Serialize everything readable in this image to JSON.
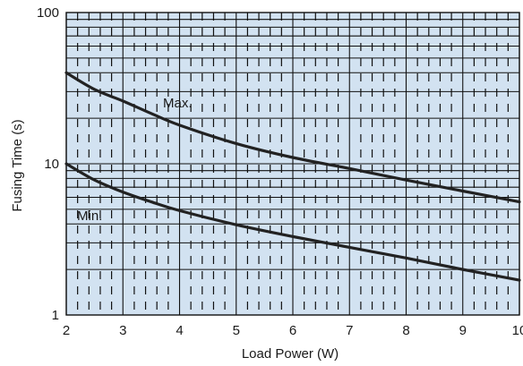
{
  "chart_data": {
    "type": "line",
    "xlabel": "Load Power (W)",
    "ylabel": "Fusing Time (s)",
    "xlim": [
      2,
      10
    ],
    "ylim": [
      1,
      100
    ],
    "yscale": "log",
    "x_ticks": [
      "2",
      "3",
      "4",
      "5",
      "6",
      "7",
      "8",
      "9",
      "10"
    ],
    "y_ticks": [
      "1",
      "10",
      "100"
    ],
    "grid": true,
    "minor_grid": "dashed vertical",
    "background_color": "#d2e2f1",
    "grid_color": "#111111",
    "line_color": "#222222",
    "series": [
      {
        "name": "Max.",
        "x": [
          2,
          2.5,
          3,
          3.5,
          4,
          5,
          6,
          7,
          8,
          9,
          10
        ],
        "y": [
          40,
          31,
          26,
          21.5,
          18,
          13.6,
          11,
          9.3,
          7.8,
          6.6,
          5.6
        ]
      },
      {
        "name": "Min.",
        "x": [
          2,
          2.5,
          3,
          3.5,
          4,
          5,
          6,
          7,
          8,
          9,
          10
        ],
        "y": [
          10,
          7.8,
          6.5,
          5.6,
          4.9,
          3.95,
          3.3,
          2.8,
          2.38,
          2.0,
          1.7
        ]
      }
    ]
  }
}
